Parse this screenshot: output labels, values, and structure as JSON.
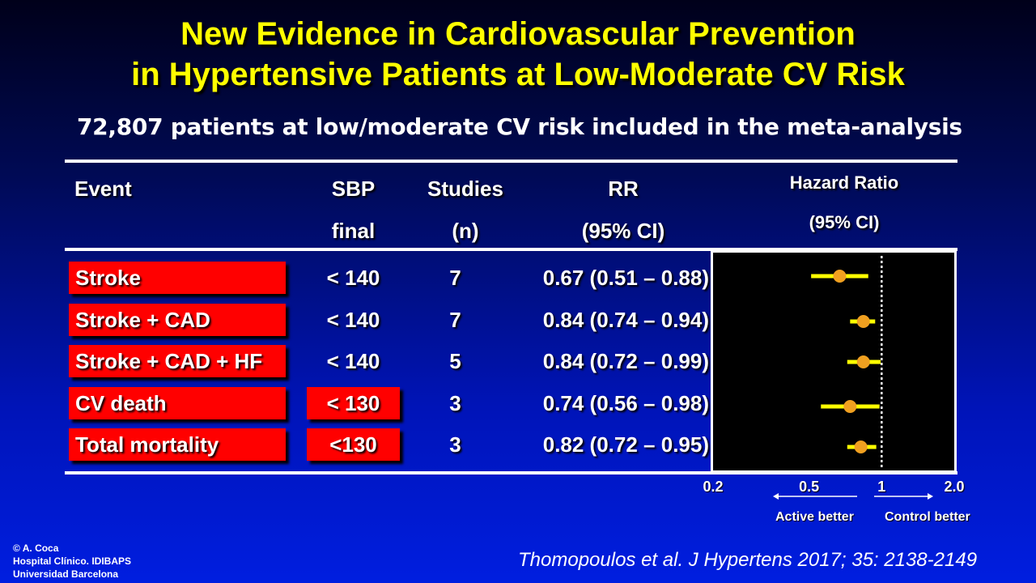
{
  "title": {
    "line1": "New Evidence in Cardiovascular Prevention",
    "line2": "in Hypertensive Patients at Low-Moderate CV Risk"
  },
  "subtitle": "72,807 patients at low/moderate CV risk included in the meta-analysis",
  "table": {
    "headers": {
      "event": "Event",
      "sbp_line1": "SBP",
      "sbp_line2": "final",
      "studies_line1": "Studies",
      "studies_line2": "(n)",
      "rr_line1": "RR",
      "rr_line2": "(95% CI)",
      "hr_line1": "Hazard Ratio",
      "hr_line2": "(95% CI)"
    },
    "rows": [
      {
        "event": "Stroke",
        "sbp": "< 140",
        "studies": "7",
        "rr": "0.67 (0.51 – 0.88)"
      },
      {
        "event": "Stroke + CAD",
        "sbp": "< 140",
        "studies": "7",
        "rr": "0.84 (0.74 – 0.94)"
      },
      {
        "event": "Stroke + CAD + HF",
        "sbp": "< 140",
        "studies": "5",
        "rr": "0.84 (0.72 – 0.99)"
      },
      {
        "event": "CV death",
        "sbp": "< 130",
        "studies": "3",
        "rr": "0.74 (0.56 – 0.98)"
      },
      {
        "event": "Total mortality",
        "sbp": "<130",
        "studies": "3",
        "rr": "0.82 (0.72 – 0.95)"
      }
    ]
  },
  "chart_data": {
    "type": "scatter",
    "title": "Hazard Ratio",
    "subtitle": "(95% CI)",
    "x_scale": "log",
    "xlim": [
      0.2,
      2.0
    ],
    "x_ticks": [
      "0.2",
      "0.5",
      "1",
      "2.0"
    ],
    "reference_line": 1,
    "series": [
      {
        "categories": [
          "Stroke",
          "Stroke + CAD",
          "Stroke + CAD + HF",
          "CV death",
          "Total mortality"
        ],
        "point": [
          0.67,
          0.84,
          0.84,
          0.74,
          0.82
        ],
        "ci_low": [
          0.51,
          0.74,
          0.72,
          0.56,
          0.72
        ],
        "ci_high": [
          0.88,
          0.94,
          0.99,
          0.98,
          0.95
        ]
      }
    ],
    "annotations": {
      "left": "Active better",
      "right": "Control better"
    },
    "colors": {
      "point": "#f0a020",
      "ci": "#ffff00",
      "background": "#000000",
      "reference": "#ffffff"
    }
  },
  "colors": {
    "title": "#ffff00",
    "event_box": "#ff0000"
  },
  "footer": {
    "copyright": "© A. Coca",
    "institution1": "Hospital Clínico. IDIBAPS",
    "institution2": "Universidad Barcelona",
    "citation": "Thomopoulos et al. J Hypertens 2017; 35: 2138-2149"
  }
}
